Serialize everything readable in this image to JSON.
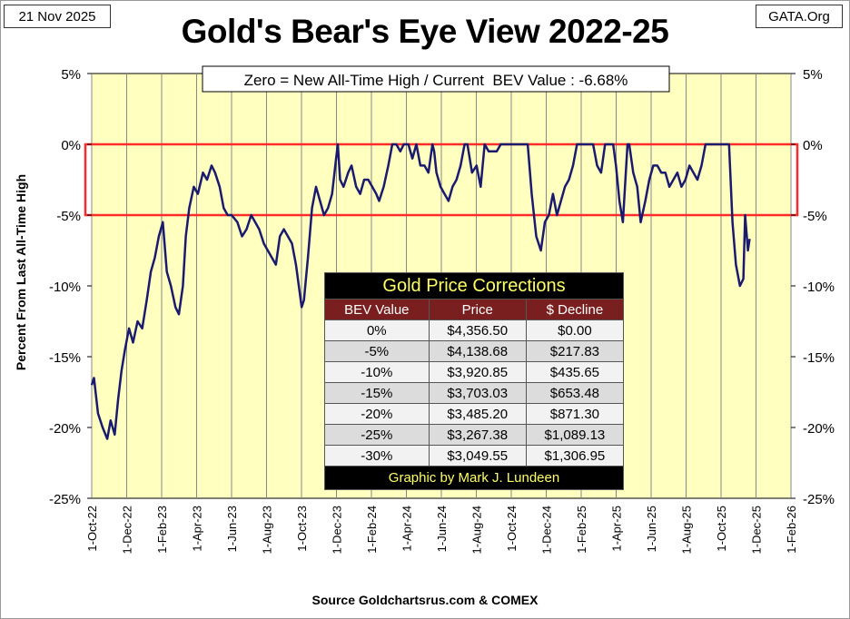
{
  "header": {
    "date": "21 Nov 2025",
    "site": "GATA.Org",
    "title": "Gold's Bear's Eye View 2022-25"
  },
  "source": "Source Goldchartsrus.com & COMEX",
  "table": {
    "title": "Gold Price Corrections",
    "headers": [
      "BEV Value",
      "Price",
      "$ Decline"
    ],
    "rows": [
      [
        "0%",
        "$4,356.50",
        "$0.00"
      ],
      [
        "-5%",
        "$4,138.68",
        "$217.83"
      ],
      [
        "-10%",
        "$3,920.85",
        "$435.65"
      ],
      [
        "-15%",
        "$3,703.03",
        "$653.48"
      ],
      [
        "-20%",
        "$3,485.20",
        "$871.30"
      ],
      [
        "-25%",
        "$3,267.38",
        "$1,089.13"
      ],
      [
        "-30%",
        "$3,049.55",
        "$1,306.95"
      ]
    ],
    "footer": "Graphic by Mark J. Lundeen"
  },
  "colors": {
    "plot_bg": "#ffffc0",
    "line": "#1a1a6e",
    "band": "#ff2a2a",
    "grid": "#888888"
  },
  "chart_data": {
    "type": "line",
    "title": "Gold's Bear's Eye View 2022-25",
    "annotation": "Zero = New All-Time High / Current  BEV Value : -6.68%",
    "ylabel": "Percent  From Last  All-Time  High",
    "xlabel": "",
    "ylim": [
      -25,
      5
    ],
    "y_ticks": [
      5,
      0,
      -5,
      -10,
      -15,
      -20,
      -25
    ],
    "y_tick_labels": [
      "5%",
      "0%",
      "-5%",
      "-10%",
      "-15%",
      "-20%",
      "-25%"
    ],
    "x_tick_labels": [
      "1-Oct-22",
      "1-Dec-22",
      "1-Feb-23",
      "1-Apr-23",
      "1-Jun-23",
      "1-Aug-23",
      "1-Oct-23",
      "1-Dec-23",
      "1-Feb-24",
      "1-Apr-24",
      "1-Jun-24",
      "1-Aug-24",
      "1-Oct-24",
      "1-Dec-24",
      "1-Feb-25",
      "1-Apr-25",
      "1-Jun-25",
      "1-Aug-25",
      "1-Oct-25",
      "1-Dec-25",
      "1-Feb-26"
    ],
    "x_range": [
      "2022-10-01",
      "2026-02-01"
    ],
    "band": {
      "from": 0,
      "to": -5
    },
    "current_value": -6.68,
    "grid": true,
    "series": [
      {
        "x": [
          "2022-10-01",
          "2022-10-05",
          "2022-10-12",
          "2022-10-20",
          "2022-10-28",
          "2022-11-03",
          "2022-11-10",
          "2022-11-16",
          "2022-11-22",
          "2022-11-28",
          "2022-12-05",
          "2022-12-12",
          "2022-12-20",
          "2022-12-28",
          "2023-01-05",
          "2023-01-12",
          "2023-01-19",
          "2023-01-26",
          "2023-02-02",
          "2023-02-09",
          "2023-02-16",
          "2023-02-24",
          "2023-03-02",
          "2023-03-09",
          "2023-03-14",
          "2023-03-20",
          "2023-03-28",
          "2023-04-04",
          "2023-04-13",
          "2023-04-20",
          "2023-04-28",
          "2023-05-04",
          "2023-05-12",
          "2023-05-19",
          "2023-05-26",
          "2023-06-02",
          "2023-06-12",
          "2023-06-20",
          "2023-06-28",
          "2023-07-06",
          "2023-07-13",
          "2023-07-20",
          "2023-07-28",
          "2023-08-04",
          "2023-08-11",
          "2023-08-18",
          "2023-08-25",
          "2023-09-01",
          "2023-09-08",
          "2023-09-15",
          "2023-09-22",
          "2023-10-02",
          "2023-10-06",
          "2023-10-13",
          "2023-10-20",
          "2023-10-27",
          "2023-11-03",
          "2023-11-10",
          "2023-11-17",
          "2023-11-24",
          "2023-12-01",
          "2023-12-04",
          "2023-12-08",
          "2023-12-14",
          "2023-12-22",
          "2023-12-28",
          "2024-01-05",
          "2024-01-12",
          "2024-01-19",
          "2024-01-26",
          "2024-02-02",
          "2024-02-09",
          "2024-02-14",
          "2024-02-22",
          "2024-03-01",
          "2024-03-08",
          "2024-03-15",
          "2024-03-22",
          "2024-03-28",
          "2024-04-05",
          "2024-04-12",
          "2024-04-19",
          "2024-04-26",
          "2024-05-03",
          "2024-05-10",
          "2024-05-17",
          "2024-05-20",
          "2024-05-24",
          "2024-05-31",
          "2024-06-07",
          "2024-06-14",
          "2024-06-21",
          "2024-06-28",
          "2024-07-05",
          "2024-07-12",
          "2024-07-17",
          "2024-07-25",
          "2024-08-02",
          "2024-08-09",
          "2024-08-16",
          "2024-08-23",
          "2024-08-30",
          "2024-09-06",
          "2024-09-13",
          "2024-09-20",
          "2024-09-26",
          "2024-10-04",
          "2024-10-11",
          "2024-10-18",
          "2024-10-25",
          "2024-10-30",
          "2024-11-06",
          "2024-11-14",
          "2024-11-22",
          "2024-11-29",
          "2024-12-06",
          "2024-12-13",
          "2024-12-20",
          "2024-12-27",
          "2025-01-03",
          "2025-01-10",
          "2025-01-17",
          "2025-01-24",
          "2025-01-31",
          "2025-02-07",
          "2025-02-14",
          "2025-02-21",
          "2025-02-28",
          "2025-03-07",
          "2025-03-14",
          "2025-03-21",
          "2025-03-28",
          "2025-04-02",
          "2025-04-08",
          "2025-04-14",
          "2025-04-22",
          "2025-04-25",
          "2025-05-02",
          "2025-05-09",
          "2025-05-15",
          "2025-05-23",
          "2025-05-30",
          "2025-06-06",
          "2025-06-13",
          "2025-06-20",
          "2025-06-27",
          "2025-07-04",
          "2025-07-11",
          "2025-07-18",
          "2025-07-25",
          "2025-08-01",
          "2025-08-08",
          "2025-08-15",
          "2025-08-22",
          "2025-08-29",
          "2025-09-05",
          "2025-09-12",
          "2025-09-19",
          "2025-09-26",
          "2025-10-03",
          "2025-10-10",
          "2025-10-16",
          "2025-10-22",
          "2025-10-28",
          "2025-11-04",
          "2025-11-10",
          "2025-11-13",
          "2025-11-18",
          "2025-11-21"
        ],
        "values": [
          -17.0,
          -16.5,
          -19.0,
          -20.0,
          -20.8,
          -19.5,
          -20.5,
          -18.0,
          -16.0,
          -14.5,
          -13.0,
          -14.0,
          -12.5,
          -13.0,
          -11.0,
          -9.0,
          -8.0,
          -6.5,
          -5.5,
          -9.0,
          -10.0,
          -11.5,
          -12.0,
          -10.0,
          -6.5,
          -4.5,
          -3.0,
          -3.5,
          -2.0,
          -2.5,
          -1.5,
          -2.0,
          -3.0,
          -4.5,
          -5.0,
          -5.0,
          -5.5,
          -6.5,
          -6.0,
          -5.0,
          -5.5,
          -6.0,
          -7.0,
          -7.5,
          -8.0,
          -8.5,
          -6.5,
          -6.0,
          -6.5,
          -7.0,
          -8.5,
          -11.5,
          -11.0,
          -8.0,
          -4.5,
          -3.0,
          -4.0,
          -5.0,
          -4.5,
          -3.5,
          -1.0,
          0.0,
          -2.5,
          -3.0,
          -2.0,
          -1.5,
          -3.0,
          -3.5,
          -2.5,
          -2.5,
          -3.0,
          -3.5,
          -4.0,
          -3.0,
          -1.5,
          0.0,
          0.0,
          -0.5,
          0.0,
          0.0,
          -1.0,
          0.0,
          -1.5,
          -1.5,
          -2.0,
          0.0,
          -0.5,
          -2.0,
          -3.0,
          -3.5,
          -4.0,
          -3.0,
          -2.5,
          -1.5,
          0.0,
          0.0,
          -2.0,
          -1.5,
          -3.0,
          0.0,
          -0.5,
          -0.5,
          -0.5,
          0.0,
          0.0,
          0.0,
          0.0,
          0.0,
          0.0,
          0.0,
          0.0,
          -3.5,
          -6.5,
          -7.5,
          -5.5,
          -5.0,
          -3.5,
          -5.0,
          -4.0,
          -3.0,
          -2.5,
          -1.5,
          0.0,
          0.0,
          0.0,
          0.0,
          0.0,
          -1.5,
          -2.0,
          0.0,
          0.0,
          0.0,
          -1.5,
          -4.0,
          -5.5,
          0.0,
          0.0,
          -2.0,
          -3.0,
          -5.5,
          -4.0,
          -2.5,
          -1.5,
          -1.5,
          -2.0,
          -2.0,
          -3.0,
          -2.5,
          -2.0,
          -3.0,
          -2.5,
          -1.5,
          -2.0,
          -2.5,
          -1.5,
          0.0,
          0.0,
          0.0,
          0.0,
          0.0,
          0.0,
          0.0,
          -5.5,
          -8.5,
          -10.0,
          -9.5,
          -5.0,
          -7.5,
          -6.68
        ]
      }
    ]
  }
}
